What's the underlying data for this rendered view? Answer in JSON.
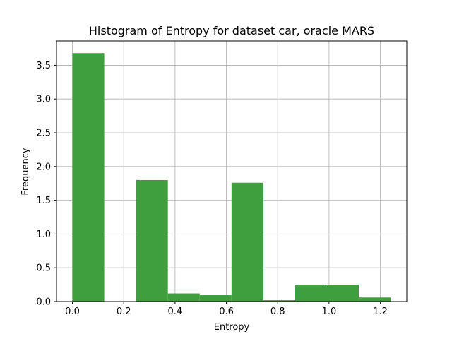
{
  "chart_data": {
    "type": "bar",
    "title": "Histogram of Entropy for dataset car, oracle MARS",
    "xlabel": "Entropy",
    "ylabel": "Frequency",
    "xlim": [
      -0.062,
      1.303
    ],
    "ylim": [
      0,
      3.86
    ],
    "grid": true,
    "bar_color": "#3f9f3f",
    "x_ticks": [
      0.0,
      0.2,
      0.4,
      0.6,
      0.8,
      1.0,
      1.2
    ],
    "x_tick_labels": [
      "0.0",
      "0.2",
      "0.4",
      "0.6",
      "0.8",
      "1.0",
      "1.2"
    ],
    "y_ticks": [
      0.0,
      0.5,
      1.0,
      1.5,
      2.0,
      2.5,
      3.0,
      3.5
    ],
    "y_tick_labels": [
      "0.0",
      "0.5",
      "1.0",
      "1.5",
      "2.0",
      "2.5",
      "3.0",
      "3.5"
    ],
    "bins": [
      {
        "x0": 0.0,
        "x1": 0.124,
        "value": 3.68
      },
      {
        "x0": 0.124,
        "x1": 0.248,
        "value": 0.0
      },
      {
        "x0": 0.248,
        "x1": 0.372,
        "value": 1.8
      },
      {
        "x0": 0.372,
        "x1": 0.496,
        "value": 0.12
      },
      {
        "x0": 0.496,
        "x1": 0.62,
        "value": 0.1
      },
      {
        "x0": 0.62,
        "x1": 0.744,
        "value": 1.76
      },
      {
        "x0": 0.744,
        "x1": 0.868,
        "value": 0.02
      },
      {
        "x0": 0.868,
        "x1": 0.992,
        "value": 0.24
      },
      {
        "x0": 0.992,
        "x1": 1.116,
        "value": 0.25
      },
      {
        "x0": 1.116,
        "x1": 1.24,
        "value": 0.06
      }
    ]
  }
}
